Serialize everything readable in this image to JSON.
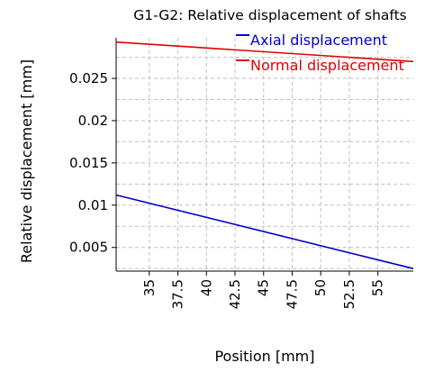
{
  "chart_data": {
    "type": "line",
    "title": "G1-G2: Relative displacement of shafts",
    "xlabel": "Position [mm]",
    "ylabel": "Relative displacement [mm]",
    "xlim": [
      32.1,
      58.1
    ],
    "ylim": [
      0.0022,
      0.0298
    ],
    "xticks": [
      35,
      37.5,
      40,
      42.5,
      45,
      47.5,
      50,
      52.5,
      55
    ],
    "xtick_labels": [
      "35",
      "37.5",
      "40",
      "42.5",
      "45",
      "47.5",
      "50",
      "52.5",
      "55"
    ],
    "yticks": [
      0.005,
      0.01,
      0.015,
      0.02,
      0.025
    ],
    "ytick_labels": [
      "0.005",
      "0.01",
      "0.015",
      "0.02",
      "0.025"
    ],
    "grid": true,
    "legend_position": "top-right",
    "series": [
      {
        "name": "Axial displacement",
        "color": "#0000c8",
        "x": [
          32.1,
          58.1
        ],
        "y": [
          0.0112,
          0.0025
        ]
      },
      {
        "name": "Normal displacement",
        "color": "#e00000",
        "x": [
          32.1,
          58.1
        ],
        "y": [
          0.0293,
          0.027
        ]
      }
    ]
  }
}
